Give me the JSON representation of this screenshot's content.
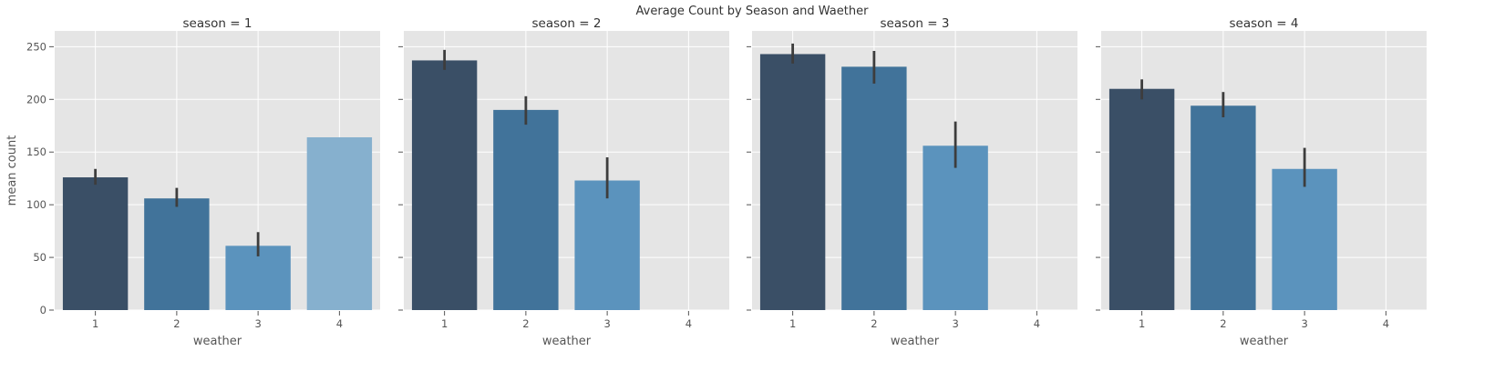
{
  "chart_data": {
    "type": "bar",
    "title": "Average Count by Season and Waether",
    "xlabel": "weather",
    "ylabel": "mean count",
    "ylim": [
      0,
      265
    ],
    "yticks": [
      0,
      50,
      100,
      150,
      200,
      250
    ],
    "categories": [
      "1",
      "2",
      "3",
      "4"
    ],
    "grid": true,
    "colors": [
      "#3a4f66",
      "#41739a",
      "#5b93bd",
      "#86b0ce"
    ],
    "errorbar_color": "#3d3d3d",
    "background": "#e5e5e5",
    "panels": [
      {
        "title": "season = 1",
        "values": [
          126,
          106,
          61,
          164
        ],
        "errors": [
          [
            119,
            134
          ],
          [
            98,
            116
          ],
          [
            51,
            74
          ],
          [
            null,
            null
          ]
        ]
      },
      {
        "title": "season = 2",
        "values": [
          237,
          190,
          123,
          null
        ],
        "errors": [
          [
            228,
            247
          ],
          [
            176,
            203
          ],
          [
            106,
            145
          ],
          [
            null,
            null
          ]
        ]
      },
      {
        "title": "season = 3",
        "values": [
          243,
          231,
          156,
          null
        ],
        "errors": [
          [
            234,
            253
          ],
          [
            215,
            246
          ],
          [
            135,
            179
          ],
          [
            null,
            null
          ]
        ]
      },
      {
        "title": "season = 4",
        "values": [
          210,
          194,
          134,
          null
        ],
        "errors": [
          [
            200,
            219
          ],
          [
            183,
            207
          ],
          [
            117,
            154
          ],
          [
            null,
            null
          ]
        ]
      }
    ]
  }
}
